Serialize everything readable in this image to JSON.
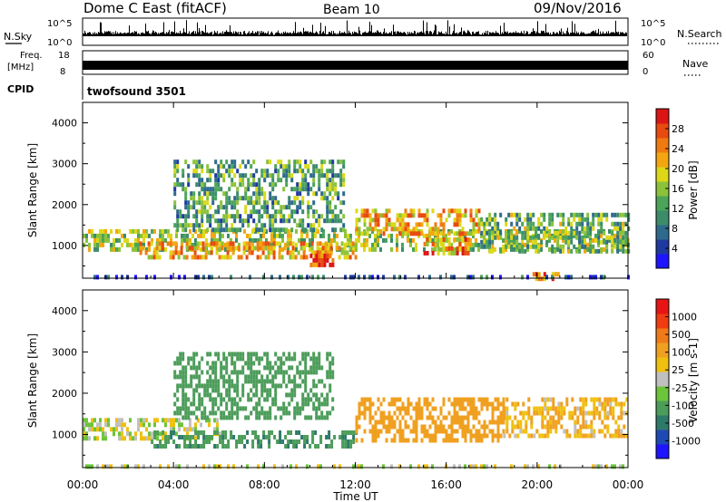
{
  "header": {
    "radar": "Dome C East (fitACF)",
    "beam": "Beam 10",
    "date": "09/Nov/2016"
  },
  "nsky": {
    "label": "N.Sky",
    "left_ticks": [
      "10^5",
      "10^0"
    ],
    "right_ticks": [
      "10^5",
      "10^0"
    ],
    "right_label": "N.Search"
  },
  "freq": {
    "label_line1": "Freq.",
    "label_line2": "[MHz]",
    "left_ticks": [
      "18",
      "8"
    ],
    "right_ticks": [
      "60",
      "0"
    ],
    "right_label": "Nave"
  },
  "cpid": {
    "label": "CPID",
    "program": "twofsound 3501"
  },
  "chart_data": [
    {
      "type": "heatmap",
      "panel": "power",
      "ylabel": "Slant Range [km]",
      "ylim": [
        200,
        4500
      ],
      "yticks": [
        1000,
        2000,
        3000,
        4000
      ],
      "xlim_hours": [
        0,
        24
      ],
      "colorbar": {
        "label": "Power [dB]",
        "range": [
          0,
          32
        ],
        "ticks": [
          "4",
          "8",
          "12",
          "16",
          "20",
          "24",
          "28"
        ],
        "colors": [
          "#1e14ff",
          "#1e3aa0",
          "#2e6a8c",
          "#3c8c6a",
          "#4ca458",
          "#8cc23a",
          "#dcd818",
          "#f4a610",
          "#f07a10",
          "#e84a10",
          "#dc1414"
        ]
      },
      "echo_regions": [
        {
          "t": [
            0.0,
            24.0
          ],
          "r": [
            900,
            1400
          ],
          "value": 16
        },
        {
          "t": [
            2.5,
            12.0
          ],
          "r": [
            700,
            1100
          ],
          "value": 22
        },
        {
          "t": [
            4.0,
            11.5
          ],
          "r": [
            1400,
            3100
          ],
          "value": 12
        },
        {
          "t": [
            10.0,
            11.0
          ],
          "r": [
            500,
            800
          ],
          "value": 28
        },
        {
          "t": [
            12.0,
            17.5
          ],
          "r": [
            1300,
            1900
          ],
          "value": 22
        },
        {
          "t": [
            15.0,
            17.0
          ],
          "r": [
            800,
            1200
          ],
          "value": 24
        },
        {
          "t": [
            17.5,
            24.0
          ],
          "r": [
            900,
            1800
          ],
          "value": 14
        },
        {
          "t": [
            19.8,
            21.0
          ],
          "r": [
            200,
            350
          ],
          "value": 26
        },
        {
          "t": [
            0.0,
            24.0
          ],
          "r": [
            200,
            280
          ],
          "value": 6
        }
      ]
    },
    {
      "type": "heatmap",
      "panel": "velocity",
      "ylabel": "Slant Range [km]",
      "xlabel": "Time UT",
      "ylim": [
        200,
        4500
      ],
      "yticks": [
        1000,
        2000,
        3000,
        4000
      ],
      "xlim_hours": [
        0,
        24
      ],
      "xtick_labels": [
        "00:00",
        "04:00",
        "08:00",
        "12:00",
        "16:00",
        "20:00",
        "00:00"
      ],
      "colorbar": {
        "label": "Velocity [m s-1]",
        "ticks": [
          "1000",
          "500",
          "100",
          "25",
          "-25",
          "-100",
          "-500",
          "-1000"
        ],
        "colors": [
          "#1e14ff",
          "#1e4ab4",
          "#2e7a6a",
          "#4c9c5a",
          "#6cc43a",
          "#c0c0c0",
          "#f0c010",
          "#f0a020",
          "#f07a18",
          "#f03c10",
          "#e81414"
        ]
      },
      "echo_regions": [
        {
          "t": [
            0.0,
            6.0
          ],
          "r": [
            900,
            1400
          ],
          "value": 0
        },
        {
          "t": [
            3.0,
            12.0
          ],
          "r": [
            700,
            1100
          ],
          "value": -400
        },
        {
          "t": [
            4.0,
            11.0
          ],
          "r": [
            1400,
            3000
          ],
          "value": -300
        },
        {
          "t": [
            12.0,
            18.5
          ],
          "r": [
            900,
            1900
          ],
          "value": 200
        },
        {
          "t": [
            18.5,
            24.0
          ],
          "r": [
            1000,
            1900
          ],
          "value": 100
        },
        {
          "t": [
            0.0,
            24.0
          ],
          "r": [
            200,
            280
          ],
          "value": 0
        }
      ]
    }
  ]
}
